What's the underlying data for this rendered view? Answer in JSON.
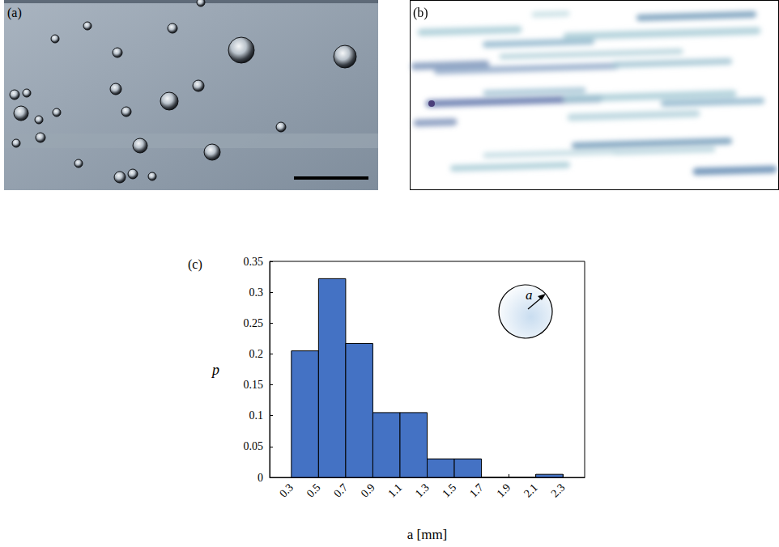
{
  "panels": [
    {
      "label": "(a)"
    },
    {
      "label": "(b)"
    }
  ],
  "chart_data": {
    "type": "histogram",
    "panel_label": "(c)",
    "xlabel": "a [mm]",
    "ylabel": "p",
    "bins": [
      0.3,
      0.5,
      0.7,
      0.9,
      1.1,
      1.3,
      1.5,
      1.7,
      1.9,
      2.1,
      2.3
    ],
    "values": [
      0.205,
      0.322,
      0.217,
      0.105,
      0.105,
      0.03,
      0.03,
      0,
      0,
      0.005
    ],
    "color": "#4472c4",
    "xlim": [
      0.14,
      2.46
    ],
    "ylim": [
      0,
      0.35
    ],
    "xticks": [
      0.3,
      0.5,
      0.7,
      0.9,
      1.1,
      1.3,
      1.5,
      1.7,
      1.9,
      2.1,
      2.3
    ],
    "yticks": [
      0,
      0.05,
      0.1,
      0.15,
      0.2,
      0.25,
      0.3,
      0.35
    ],
    "grid": false,
    "annotations": [
      {
        "text": "a"
      }
    ]
  }
}
